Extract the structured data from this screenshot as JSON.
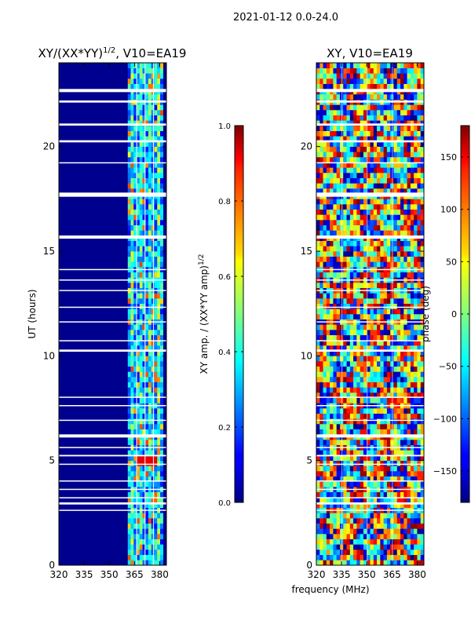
{
  "figure": {
    "suptitle": "2021-01-12 0.0-24.0",
    "xlabel_shared": "frequency (MHz)"
  },
  "chart_data": [
    {
      "type": "heatmap",
      "title_prefix": "XY/(XX*YY)",
      "title_sup": "1/2",
      "title_suffix": ", V10=EA19",
      "ylabel": "UT (hours)",
      "xlim": [
        320,
        384
      ],
      "ylim": [
        0,
        24
      ],
      "xticks": [
        "320",
        "335",
        "350",
        "365",
        "380"
      ],
      "xtick_values": [
        320,
        335,
        350,
        365,
        380
      ],
      "yticks": [
        "0",
        "5",
        "10",
        "15",
        "20"
      ],
      "ytick_values": [
        0,
        5,
        10,
        15,
        20
      ],
      "colorbar": {
        "label_main": "XY amp. / (XX*YY amp)",
        "label_sup": "1/2",
        "range": [
          0.0,
          1.0
        ],
        "ticks": [
          "0.0",
          "0.2",
          "0.4",
          "0.6",
          "0.8",
          "1.0"
        ],
        "tick_values": [
          0.0,
          0.2,
          0.4,
          0.6,
          0.8,
          1.0
        ]
      },
      "active_band_mhz": [
        361,
        382
      ],
      "flagged_ut_ranges": [
        [
          2.6,
          2.65
        ],
        [
          2.9,
          3.0
        ],
        [
          3.2,
          3.25
        ],
        [
          3.6,
          3.65
        ],
        [
          4.0,
          4.05
        ],
        [
          4.8,
          4.85
        ],
        [
          5.2,
          5.27
        ],
        [
          5.6,
          5.65
        ],
        [
          6.1,
          6.25
        ],
        [
          6.9,
          6.95
        ],
        [
          7.6,
          7.65
        ],
        [
          8.0,
          8.05
        ],
        [
          10.2,
          10.3
        ],
        [
          10.7,
          10.75
        ],
        [
          11.6,
          11.65
        ],
        [
          12.3,
          12.35
        ],
        [
          13.1,
          13.15
        ],
        [
          13.6,
          13.65
        ],
        [
          14.1,
          14.15
        ],
        [
          15.6,
          15.75
        ],
        [
          17.6,
          17.8
        ],
        [
          19.2,
          19.25
        ],
        [
          20.2,
          20.3
        ],
        [
          21.0,
          21.1
        ],
        [
          22.1,
          22.2
        ],
        [
          22.6,
          22.75
        ]
      ]
    },
    {
      "type": "heatmap",
      "title": "XY, V10=EA19",
      "xlim": [
        320,
        384
      ],
      "ylim": [
        0,
        24
      ],
      "xticks": [
        "320",
        "335",
        "350",
        "365",
        "380"
      ],
      "xtick_values": [
        320,
        335,
        350,
        365,
        380
      ],
      "yticks": [
        "0",
        "5",
        "10",
        "15",
        "20"
      ],
      "ytick_values": [
        0,
        5,
        10,
        15,
        20
      ],
      "colorbar": {
        "label": "phase (deg)",
        "range": [
          -180,
          180
        ],
        "ticks": [
          "−150",
          "−100",
          "−50",
          "0",
          "50",
          "100",
          "150"
        ],
        "tick_values": [
          -150,
          -100,
          -50,
          0,
          50,
          100,
          150
        ]
      },
      "flagged_ut_ranges": [
        [
          2.6,
          2.65
        ],
        [
          2.9,
          3.0
        ],
        [
          3.2,
          3.25
        ],
        [
          3.6,
          3.65
        ],
        [
          4.0,
          4.05
        ],
        [
          4.8,
          4.85
        ],
        [
          5.2,
          5.27
        ],
        [
          5.6,
          5.65
        ],
        [
          6.1,
          6.25
        ],
        [
          6.9,
          6.95
        ],
        [
          7.6,
          7.65
        ],
        [
          8.0,
          8.05
        ],
        [
          10.2,
          10.3
        ],
        [
          10.7,
          10.75
        ],
        [
          11.6,
          11.65
        ],
        [
          12.3,
          12.35
        ],
        [
          13.1,
          13.15
        ],
        [
          13.6,
          13.65
        ],
        [
          14.1,
          14.15
        ],
        [
          15.6,
          15.75
        ],
        [
          17.6,
          17.8
        ],
        [
          19.2,
          19.25
        ],
        [
          20.2,
          20.3
        ],
        [
          21.0,
          21.1
        ],
        [
          22.1,
          22.2
        ],
        [
          22.6,
          22.75
        ]
      ]
    }
  ]
}
